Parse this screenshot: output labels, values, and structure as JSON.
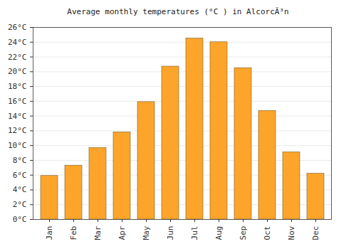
{
  "chart_data": {
    "type": "bar",
    "title": "Average monthly temperatures (°C ) in AlcorcÃ³n",
    "categories": [
      "Jan",
      "Feb",
      "Mar",
      "Apr",
      "May",
      "Jun",
      "Jul",
      "Aug",
      "Sep",
      "Oct",
      "Nov",
      "Dec"
    ],
    "values": [
      5.9,
      7.3,
      9.7,
      11.8,
      15.9,
      20.7,
      24.5,
      24.0,
      20.5,
      14.7,
      9.1,
      6.2
    ],
    "color": "#fda52a",
    "ylim": [
      0,
      26
    ],
    "yticks": [
      {
        "value": 0,
        "label": "0°C"
      },
      {
        "value": 2,
        "label": "2°C"
      },
      {
        "value": 4,
        "label": "4°C"
      },
      {
        "value": 6,
        "label": "6°C"
      },
      {
        "value": 8,
        "label": "8°C"
      },
      {
        "value": 10,
        "label": "10°C"
      },
      {
        "value": 12,
        "label": "12°C"
      },
      {
        "value": 14,
        "label": "14°C"
      },
      {
        "value": 16,
        "label": "16°C"
      },
      {
        "value": 18,
        "label": "18°C"
      },
      {
        "value": 20,
        "label": "20°C"
      },
      {
        "value": 22,
        "label": "22°C"
      },
      {
        "value": 24,
        "label": "24°C"
      },
      {
        "value": 26,
        "label": "26°C"
      }
    ],
    "grid": true
  }
}
